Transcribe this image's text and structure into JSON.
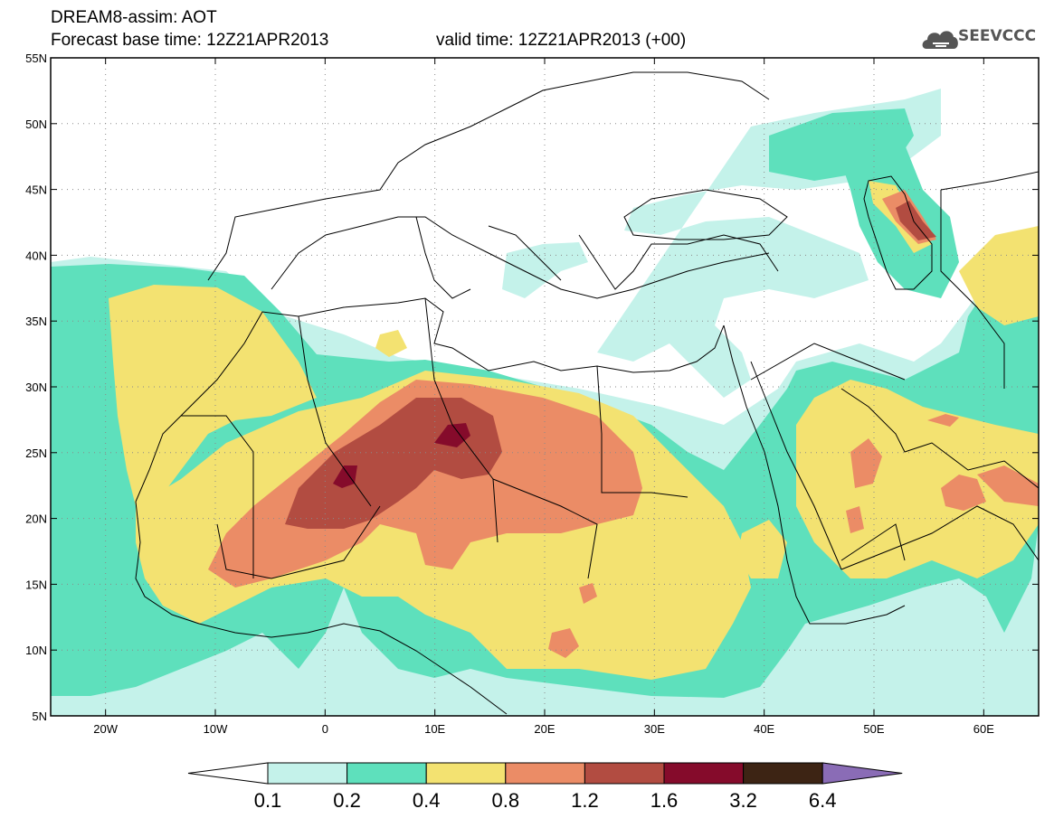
{
  "header": {
    "title": "DREAM8-assim: AOT",
    "base_time_text": "Forecast base time: 12Z21APR2013",
    "valid_time_text": "valid time: 12Z21APR2013 (+00)",
    "logo_text": "SEEVCCC"
  },
  "map": {
    "lon_range": [
      -25,
      65
    ],
    "lat_range": [
      5,
      55
    ],
    "lat_ticks": [
      {
        "value": 55,
        "label": "55N"
      },
      {
        "value": 50,
        "label": "50N"
      },
      {
        "value": 45,
        "label": "45N"
      },
      {
        "value": 40,
        "label": "40N"
      },
      {
        "value": 35,
        "label": "35N"
      },
      {
        "value": 30,
        "label": "30N"
      },
      {
        "value": 25,
        "label": "25N"
      },
      {
        "value": 20,
        "label": "20N"
      },
      {
        "value": 15,
        "label": "15N"
      },
      {
        "value": 10,
        "label": "10N"
      },
      {
        "value": 5,
        "label": "5N"
      }
    ],
    "lon_ticks": [
      {
        "value": -20,
        "label": "20W"
      },
      {
        "value": -10,
        "label": "10W"
      },
      {
        "value": 0,
        "label": "0"
      },
      {
        "value": 10,
        "label": "10E"
      },
      {
        "value": 20,
        "label": "20E"
      },
      {
        "value": 30,
        "label": "30E"
      },
      {
        "value": 40,
        "label": "40E"
      },
      {
        "value": 50,
        "label": "50E"
      },
      {
        "value": 60,
        "label": "60E"
      }
    ],
    "grid": "dotted"
  },
  "colorbar": {
    "levels": [
      "0.1",
      "0.2",
      "0.4",
      "0.8",
      "1.2",
      "1.6",
      "3.2",
      "6.4"
    ],
    "colors": [
      "#ffffff",
      "#c4f2ea",
      "#5ee0bc",
      "#f3e271",
      "#eb8c66",
      "#b24c41",
      "#850b2b",
      "#3d2414",
      "#8a6cb6"
    ]
  }
}
